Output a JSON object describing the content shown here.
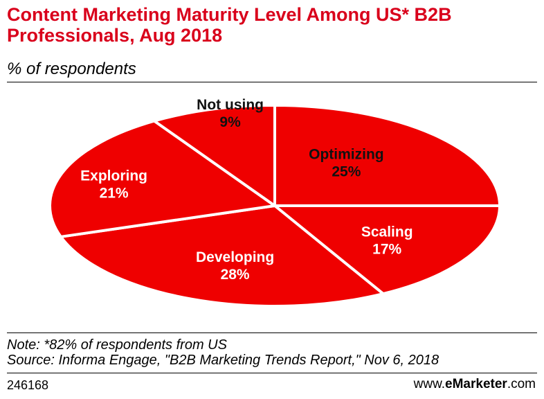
{
  "chart_data": {
    "type": "pie",
    "title": "Content Marketing Maturity Level Among US* B2B Professionals, Aug 2018",
    "subtitle": "% of respondents",
    "unit": "%",
    "slices": [
      {
        "label": "Optimizing",
        "value": 25,
        "display": "25%"
      },
      {
        "label": "Scaling",
        "value": 17,
        "display": "17%"
      },
      {
        "label": "Developing",
        "value": 28,
        "display": "28%"
      },
      {
        "label": "Exploring",
        "value": 21,
        "display": "21%"
      },
      {
        "label": "Not using",
        "value": 9,
        "display": "9%"
      }
    ],
    "start_angle_deg": 0,
    "direction": "clockwise",
    "colors": {
      "slice": "#ef0000",
      "separator": "#ffffff",
      "title": "#d9001b"
    }
  },
  "footer": {
    "note": "Note: *82% of respondents from US",
    "source": "Source: Informa Engage, \"B2B Marketing Trends Report,\" Nov 6, 2018",
    "chart_id": "246168",
    "brand_prefix": "www.",
    "brand_name": "eMarketer",
    "brand_suffix": ".com"
  }
}
